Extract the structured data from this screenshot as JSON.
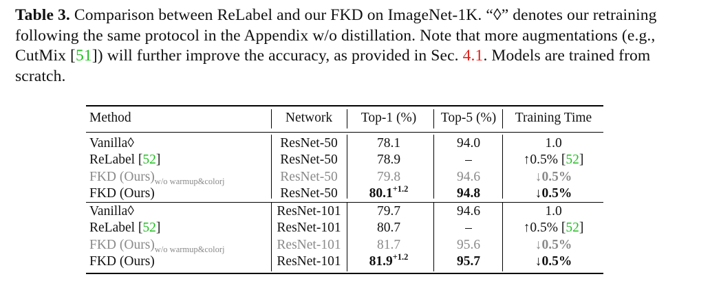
{
  "caption": {
    "label": "Table 3.",
    "text_1": " Comparison between ReLabel and our FKD on ImageNet-1K. “◊” denotes our retraining following the same protocol in the Appendix w/o distillation. Note that more augmentations (e.g., CutMix [",
    "ref_cutmix": "51",
    "text_2": "]) will further improve the accuracy, as provided in Sec. ",
    "ref_sec": "4.1",
    "text_3": ". Models are trained from scratch."
  },
  "table": {
    "headers": [
      "Method",
      "Network",
      "Top-1 (%)",
      "Top-5 (%)",
      "Training Time"
    ],
    "rows": [
      {
        "method": "Vanilla◊",
        "method_sub": "",
        "method_ref": "",
        "network": "ResNet-50",
        "top1": "78.1",
        "top1_sup": "",
        "top5": "94.0",
        "time": "1.0",
        "time_ref": "",
        "style": "normal"
      },
      {
        "method": "ReLabel [",
        "method_sub": "",
        "method_ref": "52",
        "network": "ResNet-50",
        "top1": "78.9",
        "top1_sup": "",
        "top5": "–",
        "time": "↑0.5% [",
        "time_ref": "52",
        "style": "normal"
      },
      {
        "method": "FKD (Ours)",
        "method_sub": "w/o warmup&colorj",
        "method_ref": "",
        "network": "ResNet-50",
        "top1": "79.8",
        "top1_sup": "",
        "top5": "94.6",
        "time": "↓0.5%",
        "time_ref": "",
        "style": "gray"
      },
      {
        "method": "FKD (Ours)",
        "method_sub": "",
        "method_ref": "",
        "network": "ResNet-50",
        "top1": "80.1",
        "top1_sup": "+1.2",
        "top5": "94.8",
        "time": "↓0.5%",
        "time_ref": "",
        "style": "best"
      },
      {
        "method": "Vanilla◊",
        "method_sub": "",
        "method_ref": "",
        "network": "ResNet-101",
        "top1": "79.7",
        "top1_sup": "",
        "top5": "94.6",
        "time": "1.0",
        "time_ref": "",
        "style": "normal"
      },
      {
        "method": "ReLabel [",
        "method_sub": "",
        "method_ref": "52",
        "network": "ResNet-101",
        "top1": "80.7",
        "top1_sup": "",
        "top5": "–",
        "time": "↑0.5% [",
        "time_ref": "52",
        "style": "normal"
      },
      {
        "method": "FKD (Ours)",
        "method_sub": "w/o warmup&colorj",
        "method_ref": "",
        "network": "ResNet-101",
        "top1": "81.7",
        "top1_sup": "",
        "top5": "95.6",
        "time": "↓0.5%",
        "time_ref": "",
        "style": "gray"
      },
      {
        "method": "FKD (Ours)",
        "method_sub": "",
        "method_ref": "",
        "network": "ResNet-101",
        "top1": "81.9",
        "top1_sup": "+1.2",
        "top5": "95.7",
        "time": "↓0.5%",
        "time_ref": "",
        "style": "best"
      }
    ]
  }
}
